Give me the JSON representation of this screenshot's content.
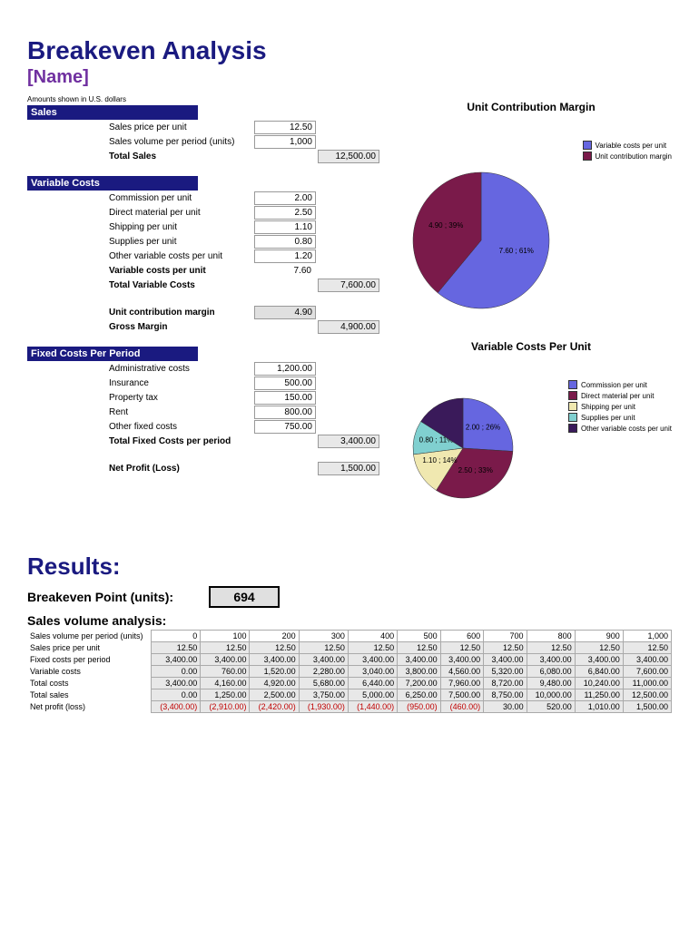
{
  "title": "Breakeven Analysis",
  "subtitle": "[Name]",
  "note": "Amounts shown in U.S. dollars",
  "sections": {
    "sales": {
      "header": "Sales",
      "rows": [
        {
          "label": "Sales price per unit",
          "v1": "12.50"
        },
        {
          "label": "Sales volume per period (units)",
          "v1": "1,000"
        }
      ],
      "total": {
        "label": "Total Sales",
        "v2": "12,500.00"
      }
    },
    "variable": {
      "header": "Variable Costs",
      "rows": [
        {
          "label": "Commission per unit",
          "v1": "2.00"
        },
        {
          "label": "Direct material per unit",
          "v1": "2.50"
        },
        {
          "label": "Shipping per unit",
          "v1": "1.10"
        },
        {
          "label": "Supplies per unit",
          "v1": "0.80"
        },
        {
          "label": "Other variable costs per unit",
          "v1": "1.20"
        },
        {
          "label": "Variable costs per unit",
          "v1": "7.60",
          "bold": true,
          "noborder": true
        }
      ],
      "total": {
        "label": "Total Variable Costs",
        "v2": "7,600.00"
      },
      "ucm": {
        "label": "Unit contribution margin",
        "v1": "4.90"
      },
      "gross": {
        "label": "Gross Margin",
        "v2": "4,900.00"
      }
    },
    "fixed": {
      "header": "Fixed Costs Per Period",
      "rows": [
        {
          "label": "Administrative costs",
          "v1": "1,200.00"
        },
        {
          "label": "Insurance",
          "v1": "500.00"
        },
        {
          "label": "Property tax",
          "v1": "150.00"
        },
        {
          "label": "Rent",
          "v1": "800.00"
        },
        {
          "label": "Other fixed costs",
          "v1": "750.00"
        }
      ],
      "total": {
        "label": "Total Fixed Costs per period",
        "v2": "3,400.00"
      },
      "net": {
        "label": "Net Profit (Loss)",
        "v2": "1,500.00"
      }
    }
  },
  "chart1": {
    "title": "Unit Contribution Margin",
    "type": "pie",
    "slices": [
      {
        "label": "Variable costs per unit",
        "dlabel": "7.60 ; 61%",
        "pct": 61,
        "color": "#6666e0"
      },
      {
        "label": "Unit contribution margin",
        "dlabel": "4.90 ; 39%",
        "pct": 39,
        "color": "#7a1a4a"
      }
    ],
    "radius": 75
  },
  "chart2": {
    "title": "Variable Costs Per Unit",
    "type": "pie",
    "slices": [
      {
        "label": "Commission per unit",
        "dlabel": "2.00 ; 26%",
        "pct": 26,
        "color": "#6666e0"
      },
      {
        "label": "Direct material per unit",
        "dlabel": "2.50 ; 33%",
        "pct": 33,
        "color": "#7a1a4a"
      },
      {
        "label": "Shipping per unit",
        "dlabel": "1.10 ; 14%",
        "pct": 14,
        "color": "#f0e8b0"
      },
      {
        "label": "Supplies per unit",
        "dlabel": "0.80 ; 11%",
        "pct": 11,
        "color": "#80d0d0"
      },
      {
        "label": "Other variable costs per unit",
        "dlabel": "",
        "pct": 16,
        "color": "#3a1a5a"
      }
    ],
    "radius": 55
  },
  "results": {
    "title": "Results:",
    "bp_label": "Breakeven Point (units):",
    "bp_value": "694",
    "sva_title": "Sales volume analysis:",
    "row_labels": [
      "Sales volume per period (units)",
      "Sales price per unit",
      "Fixed costs per period",
      "Variable costs",
      "Total costs",
      "Total sales",
      "Net profit (loss)"
    ],
    "cols": [
      [
        "0",
        "12.50",
        "3,400.00",
        "0.00",
        "3,400.00",
        "0.00",
        "(3,400.00)"
      ],
      [
        "100",
        "12.50",
        "3,400.00",
        "760.00",
        "4,160.00",
        "1,250.00",
        "(2,910.00)"
      ],
      [
        "200",
        "12.50",
        "3,400.00",
        "1,520.00",
        "4,920.00",
        "2,500.00",
        "(2,420.00)"
      ],
      [
        "300",
        "12.50",
        "3,400.00",
        "2,280.00",
        "5,680.00",
        "3,750.00",
        "(1,930.00)"
      ],
      [
        "400",
        "12.50",
        "3,400.00",
        "3,040.00",
        "6,440.00",
        "5,000.00",
        "(1,440.00)"
      ],
      [
        "500",
        "12.50",
        "3,400.00",
        "3,800.00",
        "7,200.00",
        "6,250.00",
        "(950.00)"
      ],
      [
        "600",
        "12.50",
        "3,400.00",
        "4,560.00",
        "7,960.00",
        "7,500.00",
        "(460.00)"
      ],
      [
        "700",
        "12.50",
        "3,400.00",
        "5,320.00",
        "8,720.00",
        "8,750.00",
        "30.00"
      ],
      [
        "800",
        "12.50",
        "3,400.00",
        "6,080.00",
        "9,480.00",
        "10,000.00",
        "520.00"
      ],
      [
        "900",
        "12.50",
        "3,400.00",
        "6,840.00",
        "10,240.00",
        "11,250.00",
        "1,010.00"
      ],
      [
        "1,000",
        "12.50",
        "3,400.00",
        "7,600.00",
        "11,000.00",
        "12,500.00",
        "1,500.00"
      ]
    ]
  }
}
